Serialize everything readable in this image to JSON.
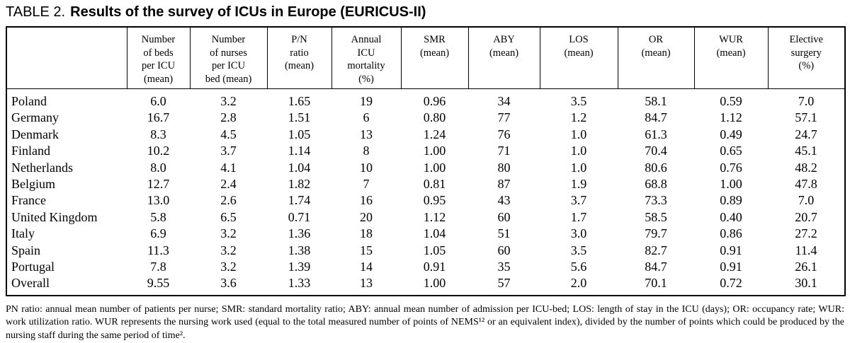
{
  "page": {
    "title_prefix": "TABLE 2.",
    "title": "Results of the survey of ICUs in Europe (EURICUS-II)"
  },
  "table": {
    "corner_label": "",
    "columns": [
      {
        "id": "beds",
        "label": "Number\nof beds\nper ICU\n(mean)"
      },
      {
        "id": "nurses",
        "label": "Number\nof nurses\nper ICU\nbed (mean)"
      },
      {
        "id": "pn_ratio",
        "label": "P/N\nratio\n(mean)"
      },
      {
        "id": "mortality",
        "label": "Annual\nICU\nmortality\n(%)"
      },
      {
        "id": "smr",
        "label": "SMR\n(mean)"
      },
      {
        "id": "aby",
        "label": "ABY\n(mean)"
      },
      {
        "id": "los",
        "label": "LOS\n(mean)"
      },
      {
        "id": "or",
        "label": "OR\n(mean)"
      },
      {
        "id": "wur",
        "label": "WUR\n(mean)"
      },
      {
        "id": "elective",
        "label": "Elective\nsurgery\n(%)"
      }
    ],
    "rows": [
      {
        "country": "Poland",
        "values": [
          "6.0",
          "3.2",
          "1.65",
          "19",
          "0.96",
          "34",
          "3.5",
          "58.1",
          "0.59",
          "7.0"
        ]
      },
      {
        "country": "Germany",
        "values": [
          "16.7",
          "2.8",
          "1.51",
          "6",
          "0.80",
          "77",
          "1.2",
          "84.7",
          "1.12",
          "57.1"
        ]
      },
      {
        "country": "Denmark",
        "values": [
          "8.3",
          "4.5",
          "1.05",
          "13",
          "1.24",
          "76",
          "1.0",
          "61.3",
          "0.49",
          "24.7"
        ]
      },
      {
        "country": "Finland",
        "values": [
          "10.2",
          "3.7",
          "1.14",
          "8",
          "1.00",
          "71",
          "1.0",
          "70.4",
          "0.65",
          "45.1"
        ]
      },
      {
        "country": "Netherlands",
        "values": [
          "8.0",
          "4.1",
          "1.04",
          "10",
          "1.00",
          "80",
          "1.0",
          "80.6",
          "0.76",
          "48.2"
        ]
      },
      {
        "country": "Belgium",
        "values": [
          "12.7",
          "2.4",
          "1.82",
          "7",
          "0.81",
          "87",
          "1.9",
          "68.8",
          "1.00",
          "47.8"
        ]
      },
      {
        "country": "France",
        "values": [
          "13.0",
          "2.6",
          "1.74",
          "16",
          "0.95",
          "43",
          "3.7",
          "73.3",
          "0.89",
          "7.0"
        ]
      },
      {
        "country": "United Kingdom",
        "values": [
          "5.8",
          "6.5",
          "0.71",
          "20",
          "1.12",
          "60",
          "1.7",
          "58.5",
          "0.40",
          "20.7"
        ]
      },
      {
        "country": "Italy",
        "values": [
          "6.9",
          "3.2",
          "1.36",
          "18",
          "1.04",
          "51",
          "3.0",
          "79.7",
          "0.86",
          "27.2"
        ]
      },
      {
        "country": "Spain",
        "values": [
          "11.3",
          "3.2",
          "1.38",
          "15",
          "1.05",
          "60",
          "3.5",
          "82.7",
          "0.91",
          "11.4"
        ]
      },
      {
        "country": "Portugal",
        "values": [
          "7.8",
          "3.2",
          "1.39",
          "14",
          "0.91",
          "35",
          "5.6",
          "84.7",
          "0.91",
          "26.1"
        ]
      },
      {
        "country": "Overall",
        "values": [
          "9.55",
          "3.6",
          "1.33",
          "13",
          "1.00",
          "57",
          "2.0",
          "70.1",
          "0.72",
          "30.1"
        ]
      }
    ]
  },
  "footnote": "PN ratio: annual mean number of patients per nurse; SMR: standard mortality ratio; ABY: annual mean number of admission per ICU-bed; LOS: length of stay in the ICU (days); OR: occupancy rate; WUR: work utilization ratio. WUR represents the nursing work used (equal to the total measured number of points of NEMS¹² or an equivalent index), divided by the number of points which could be produced by the nursing staff during the same period of time²."
}
